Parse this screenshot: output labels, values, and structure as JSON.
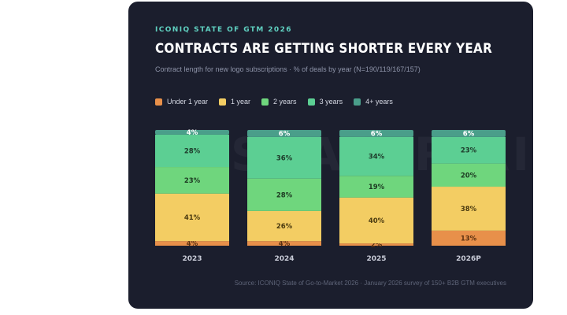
{
  "eyebrow": "ICONIQ STATE OF GTM 2026",
  "title": "CONTRACTS ARE GETTING SHORTER EVERY YEAR",
  "subtitle": "Contract length for new logo subscriptions · % of deals by year (N=190/119/167/157)",
  "watermark": "SAASTR.AI",
  "source": "Source: ICONIQ State of Go-to-Market 2026 · January 2026 survey of 150+ B2B GTM executives",
  "colors": {
    "under_1_year": "#e8904a",
    "one_year": "#f3cd63",
    "two_years": "#6fd67d",
    "three_years": "#5ccf93",
    "four_plus_years": "#4a9e8a",
    "background": "#1b1e2d"
  },
  "chart_data": {
    "type": "bar",
    "stacked": true,
    "percent": true,
    "categories": [
      "2023",
      "2024",
      "2025",
      "2026P"
    ],
    "series": [
      {
        "name": "Under 1 year",
        "color": "#e8904a",
        "values": [
          4,
          4,
          2,
          13
        ]
      },
      {
        "name": "1 year",
        "color": "#f3cd63",
        "values": [
          41,
          26,
          40,
          38
        ]
      },
      {
        "name": "2 years",
        "color": "#6fd67d",
        "values": [
          23,
          28,
          19,
          20
        ]
      },
      {
        "name": "3 years",
        "color": "#5ccf93",
        "values": [
          28,
          36,
          34,
          23
        ]
      },
      {
        "name": "4+ years",
        "color": "#4a9e8a",
        "values": [
          4,
          6,
          6,
          6
        ]
      }
    ],
    "ylim": [
      0,
      100
    ],
    "grid": false,
    "legend": "top-left"
  }
}
